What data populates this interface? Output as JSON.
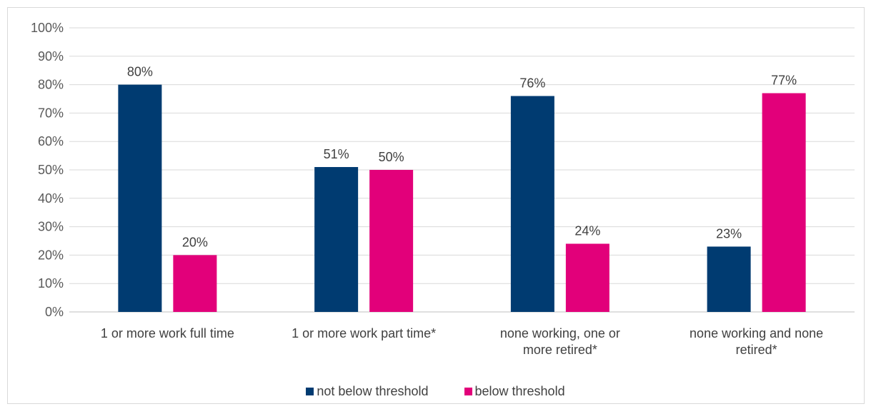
{
  "chart_data": {
    "type": "bar",
    "categories": [
      "1 or more work full time",
      "1 or more work part time*",
      "none working, one or more retired*",
      "none working and none retired*"
    ],
    "category_lines": [
      [
        "1 or more work full time"
      ],
      [
        "1 or more work part time*"
      ],
      [
        "none working, one or",
        "more retired*"
      ],
      [
        "none working and none",
        "retired*"
      ]
    ],
    "series": [
      {
        "name": "not below threshold",
        "color": "#003b71",
        "values": [
          80,
          51,
          76,
          23
        ],
        "labels": [
          "80%",
          "51%",
          "76%",
          "23%"
        ]
      },
      {
        "name": "below threshold",
        "color": "#e2007a",
        "values": [
          20,
          50,
          24,
          77
        ],
        "labels": [
          "20%",
          "50%",
          "24%",
          "77%"
        ]
      }
    ],
    "ylim": [
      0,
      100
    ],
    "y_ticks": [
      "0%",
      "10%",
      "20%",
      "30%",
      "40%",
      "50%",
      "60%",
      "70%",
      "80%",
      "90%",
      "100%"
    ],
    "title": "",
    "xlabel": "",
    "ylabel": "",
    "grid": true,
    "legend_position": "bottom"
  }
}
